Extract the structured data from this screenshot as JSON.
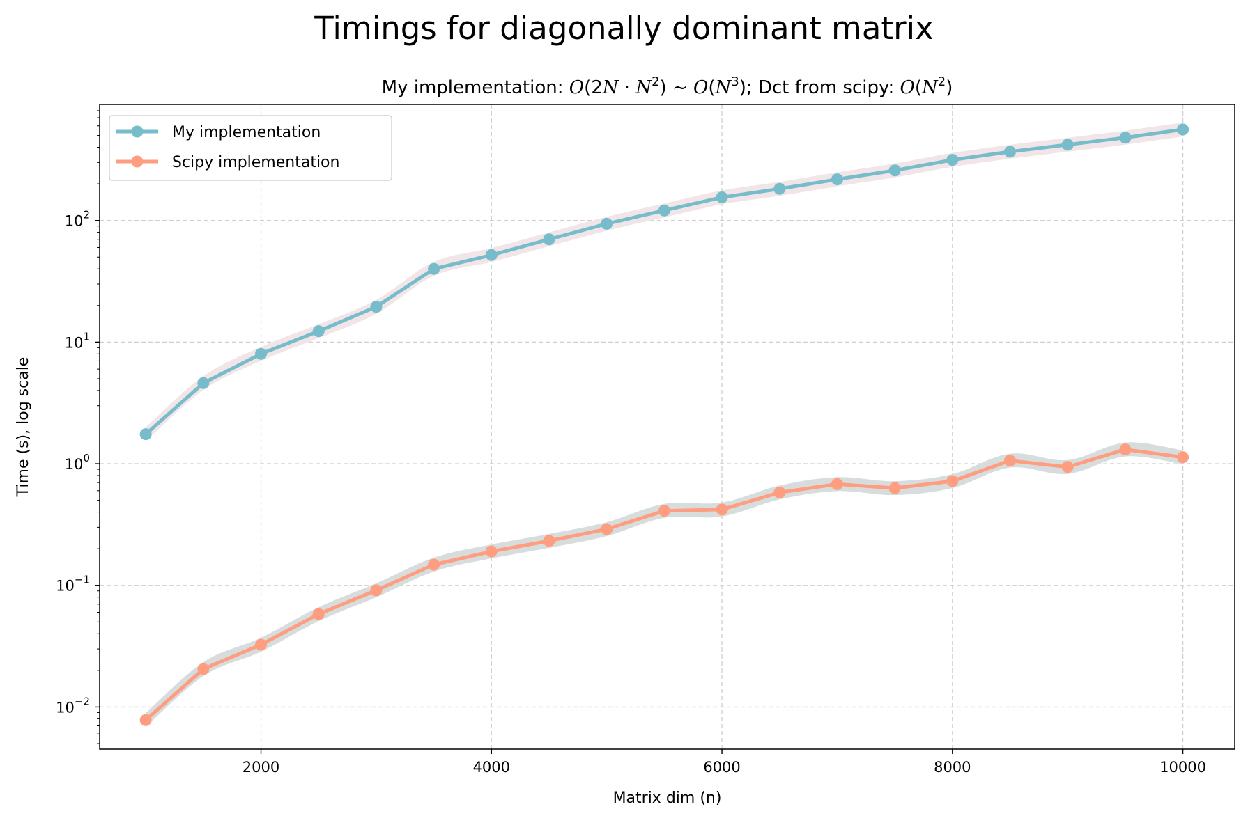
{
  "figure": {
    "suptitle": "Timings for diagonally dominant matrix"
  },
  "chart_data": {
    "type": "line",
    "title_parts": [
      {
        "t": "My implementation: ",
        "it": false
      },
      {
        "t": "O",
        "it": true
      },
      {
        "t": "(2",
        "it": false
      },
      {
        "t": "N",
        "it": true
      },
      {
        "t": " · ",
        "it": false
      },
      {
        "t": "N",
        "it": true
      },
      {
        "t": "2",
        "it": false,
        "sup": true
      },
      {
        "t": ") ~ ",
        "it": false
      },
      {
        "t": "O",
        "it": true
      },
      {
        "t": "(",
        "it": false
      },
      {
        "t": "N",
        "it": true
      },
      {
        "t": "3",
        "it": false,
        "sup": true
      },
      {
        "t": "); Dct from scipy: ",
        "it": false
      },
      {
        "t": "O",
        "it": true
      },
      {
        "t": "(",
        "it": false
      },
      {
        "t": "N",
        "it": true
      },
      {
        "t": "2",
        "it": false,
        "sup": true
      },
      {
        "t": ")",
        "it": false
      }
    ],
    "xlabel": "Matrix dim (n)",
    "ylabel": "Time (s), log scale",
    "xscale": "linear",
    "yscale": "log",
    "xlim": [
      600,
      10450
    ],
    "ylim": [
      0.0045,
      900
    ],
    "xticks": [
      2000,
      4000,
      6000,
      8000,
      10000
    ],
    "xtick_labels": [
      "2000",
      "4000",
      "6000",
      "8000",
      "10000"
    ],
    "yticks": [
      0.01,
      0.1,
      1,
      10,
      100
    ],
    "ytick_labels": [
      {
        "base": "10",
        "exp": "−2"
      },
      {
        "base": "10",
        "exp": "−1"
      },
      {
        "base": "10",
        "exp": "0"
      },
      {
        "base": "10",
        "exp": "1"
      },
      {
        "base": "10",
        "exp": "2"
      }
    ],
    "grid": true,
    "legend_position": "upper-left",
    "x": [
      1000,
      1500,
      2000,
      2500,
      3000,
      3500,
      4000,
      4500,
      5000,
      5500,
      6000,
      6500,
      7000,
      7500,
      8000,
      8500,
      9000,
      9500,
      10000
    ],
    "series": [
      {
        "name": "My implementation",
        "color": "#76bccb",
        "band_color": "#f0e4e6",
        "values": [
          1.75,
          4.6,
          8.0,
          12.3,
          19.5,
          40,
          52,
          70,
          94,
          121,
          155,
          182,
          218,
          258,
          315,
          368,
          420,
          480,
          560
        ]
      },
      {
        "name": "Scipy implementation",
        "color": "#fe9d80",
        "band_color": "#d5dbdb",
        "values": [
          0.0078,
          0.0205,
          0.0325,
          0.058,
          0.091,
          0.148,
          0.19,
          0.232,
          0.29,
          0.41,
          0.42,
          0.58,
          0.68,
          0.63,
          0.72,
          1.06,
          0.94,
          1.31,
          1.13
        ]
      }
    ]
  }
}
